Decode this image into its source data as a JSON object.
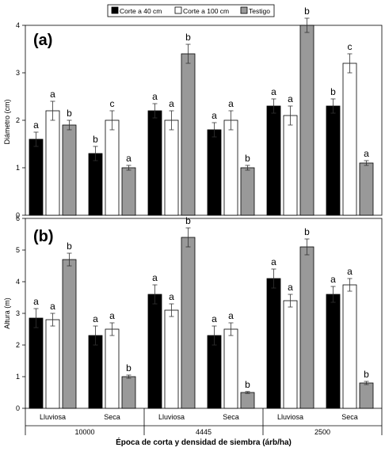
{
  "legend": {
    "placement": "top-center",
    "entries": [
      {
        "label": "Corte a 40 cm",
        "color": "#000000"
      },
      {
        "label": "Corte a 100 cm",
        "color": "#ffffff"
      },
      {
        "label": "Testigo",
        "color": "#999999"
      }
    ]
  },
  "xlabel": "Época de corta y densidad de siembra (árb/ha)",
  "groups": [
    {
      "density": "10000",
      "seasons": [
        "Lluviosa",
        "Seca"
      ]
    },
    {
      "density": "4445",
      "seasons": [
        "Lluviosa",
        "Seca"
      ]
    },
    {
      "density": "2500",
      "seasons": [
        "Lluviosa",
        "Seca"
      ]
    }
  ],
  "chart_data": [
    {
      "type": "bar",
      "panel_label": "(a)",
      "ylabel": "Diámetro (cm)",
      "ylim": [
        0,
        4
      ],
      "yticks": [
        "0",
        "1",
        "2",
        "3",
        "4"
      ],
      "categories": [
        "Lluviosa",
        "Seca",
        "Lluviosa",
        "Seca",
        "Lluviosa",
        "Seca"
      ],
      "series": [
        {
          "name": "Corte a 40 cm",
          "values": [
            1.6,
            1.3,
            2.2,
            1.8,
            2.3,
            2.3
          ],
          "errors": [
            0.15,
            0.15,
            0.15,
            0.15,
            0.15,
            0.15
          ],
          "letters": [
            "a",
            "b",
            "a",
            "a",
            "a",
            "b"
          ]
        },
        {
          "name": "Corte a 100 cm",
          "values": [
            2.2,
            2.0,
            2.0,
            2.0,
            2.1,
            3.2
          ],
          "errors": [
            0.2,
            0.2,
            0.2,
            0.2,
            0.2,
            0.2
          ],
          "letters": [
            "a",
            "c",
            "a",
            "a",
            "a",
            "c"
          ]
        },
        {
          "name": "Testigo",
          "values": [
            1.9,
            1.0,
            3.4,
            1.0,
            4.0,
            1.1
          ],
          "errors": [
            0.1,
            0.05,
            0.2,
            0.05,
            0.15,
            0.05
          ],
          "letters": [
            "b",
            "a",
            "b",
            "b",
            "b",
            "a"
          ]
        }
      ]
    },
    {
      "type": "bar",
      "panel_label": "(b)",
      "ylabel": "Altura (m)",
      "ylim": [
        0,
        6
      ],
      "yticks": [
        "0",
        "1",
        "2",
        "3",
        "4",
        "5",
        "6"
      ],
      "categories": [
        "Lluviosa",
        "Seca",
        "Lluviosa",
        "Seca",
        "Lluviosa",
        "Seca"
      ],
      "series": [
        {
          "name": "Corte a 40 cm",
          "values": [
            2.85,
            2.3,
            3.6,
            2.3,
            4.1,
            3.6
          ],
          "errors": [
            0.3,
            0.3,
            0.3,
            0.3,
            0.3,
            0.25
          ],
          "letters": [
            "a",
            "a",
            "a",
            "a",
            "a",
            "a"
          ]
        },
        {
          "name": "Corte a 100 cm",
          "values": [
            2.8,
            2.5,
            3.1,
            2.5,
            3.4,
            3.9
          ],
          "errors": [
            0.2,
            0.2,
            0.2,
            0.2,
            0.2,
            0.2
          ],
          "letters": [
            "a",
            "a",
            "a",
            "a",
            "a",
            "a"
          ]
        },
        {
          "name": "Testigo",
          "values": [
            4.7,
            1.0,
            5.4,
            0.5,
            5.1,
            0.8
          ],
          "errors": [
            0.2,
            0.05,
            0.3,
            0.03,
            0.25,
            0.05
          ],
          "letters": [
            "b",
            "b",
            "b",
            "b",
            "b",
            "b"
          ]
        }
      ]
    }
  ]
}
